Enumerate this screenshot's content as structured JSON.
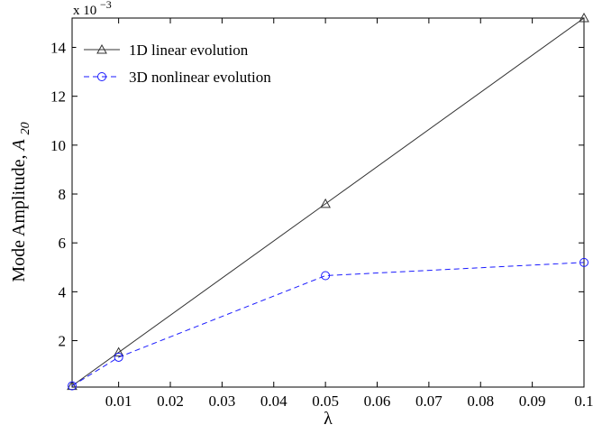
{
  "chart_data": {
    "type": "line",
    "title": "",
    "xlabel": "λ",
    "ylabel": "Mode Amplitude, ",
    "ylabel_symbol": "A",
    "ylabel_subscript": "20",
    "y_exponent_prefix": "x 10",
    "y_exponent_power": "−3",
    "xlim": [
      0.001,
      0.1
    ],
    "ylim": [
      0.0001,
      0.0152
    ],
    "x_ticks": [
      0.01,
      0.02,
      0.03,
      0.04,
      0.05,
      0.06,
      0.07,
      0.08,
      0.09,
      0.1
    ],
    "x_tick_labels": [
      "0.01",
      "0.02",
      "0.03",
      "0.04",
      "0.05",
      "0.06",
      "0.07",
      "0.08",
      "0.09",
      "0.1"
    ],
    "y_ticks": [
      0.002,
      0.004,
      0.006,
      0.008,
      0.01,
      0.012,
      0.014
    ],
    "y_tick_labels": [
      "2",
      "4",
      "6",
      "8",
      "10",
      "12",
      "14"
    ],
    "grid": false,
    "legend_position": "top-left",
    "series": [
      {
        "name": "1D linear evolution",
        "color": "#333333",
        "line_style": "solid",
        "marker": "triangle",
        "x": [
          0.001,
          0.01,
          0.05,
          0.1
        ],
        "y": [
          0.00015,
          0.00152,
          0.0076,
          0.0152
        ]
      },
      {
        "name": "3D nonlinear evolution",
        "color": "#1a1aff",
        "line_style": "dashed",
        "marker": "circle",
        "x": [
          0.001,
          0.01,
          0.05,
          0.1
        ],
        "y": [
          0.00015,
          0.00132,
          0.00466,
          0.0052
        ]
      }
    ]
  }
}
